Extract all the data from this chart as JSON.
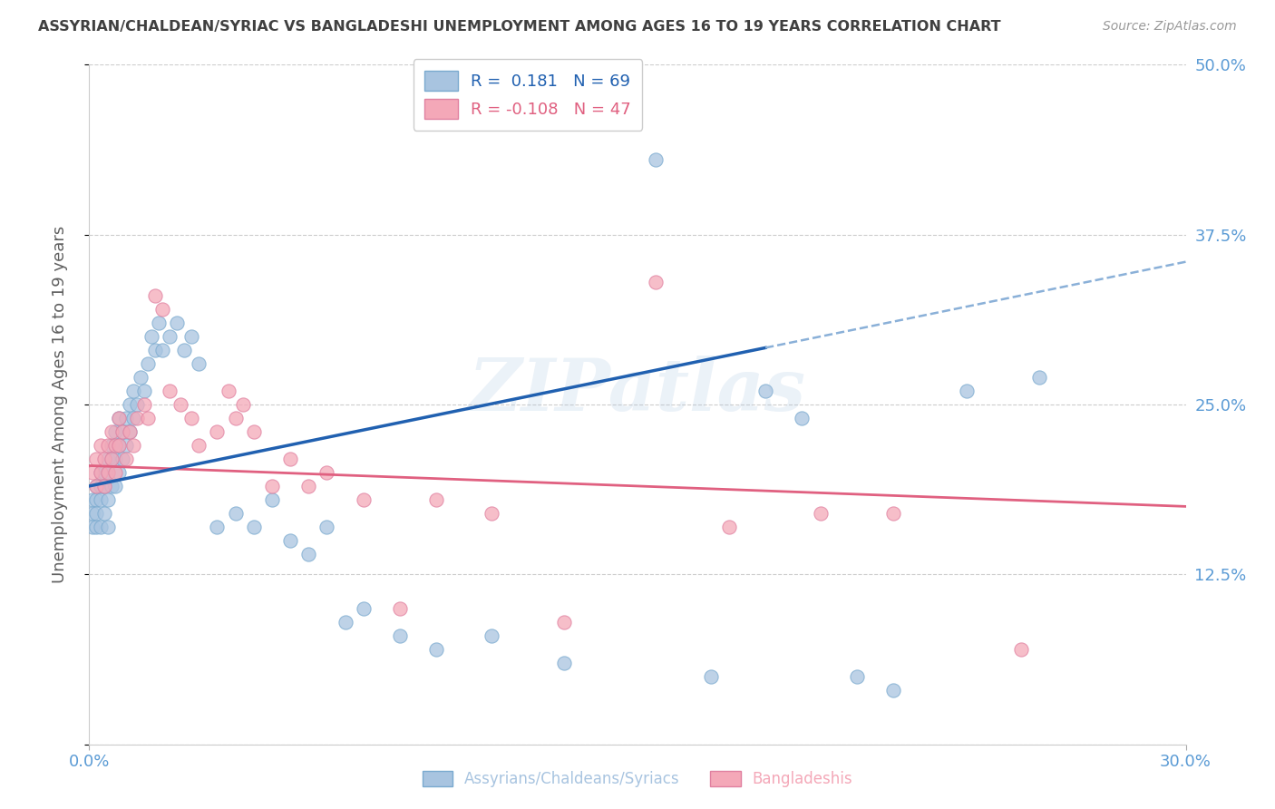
{
  "title": "ASSYRIAN/CHALDEAN/SYRIAC VS BANGLADESHI UNEMPLOYMENT AMONG AGES 16 TO 19 YEARS CORRELATION CHART",
  "source": "Source: ZipAtlas.com",
  "ylabel": "Unemployment Among Ages 16 to 19 years",
  "xlim": [
    0.0,
    0.3
  ],
  "ylim": [
    0.0,
    0.5
  ],
  "yticks": [
    0.0,
    0.125,
    0.25,
    0.375,
    0.5
  ],
  "ytick_labels": [
    "",
    "12.5%",
    "25.0%",
    "37.5%",
    "50.0%"
  ],
  "xticks": [
    0.0,
    0.3
  ],
  "xtick_labels": [
    "0.0%",
    "30.0%"
  ],
  "watermark": "ZIPatlas",
  "blue_color": "#a8c4e0",
  "blue_edge": "#7aaacf",
  "pink_color": "#f4a8b8",
  "pink_edge": "#e080a0",
  "trend_blue": "#2060b0",
  "trend_pink": "#e06080",
  "trend_dash": "#8ab0d8",
  "background_color": "#ffffff",
  "grid_color": "#cccccc",
  "tick_color": "#5b9bd5",
  "title_color": "#404040",
  "blue_intercept": 0.19,
  "blue_slope": 0.55,
  "pink_intercept": 0.205,
  "pink_slope": -0.1,
  "blue_x": [
    0.001,
    0.001,
    0.001,
    0.002,
    0.002,
    0.002,
    0.002,
    0.003,
    0.003,
    0.003,
    0.003,
    0.004,
    0.004,
    0.004,
    0.005,
    0.005,
    0.005,
    0.005,
    0.006,
    0.006,
    0.006,
    0.007,
    0.007,
    0.007,
    0.008,
    0.008,
    0.008,
    0.009,
    0.009,
    0.01,
    0.01,
    0.011,
    0.011,
    0.012,
    0.012,
    0.013,
    0.014,
    0.015,
    0.016,
    0.017,
    0.018,
    0.019,
    0.02,
    0.022,
    0.024,
    0.026,
    0.028,
    0.03,
    0.035,
    0.04,
    0.045,
    0.05,
    0.055,
    0.06,
    0.065,
    0.07,
    0.075,
    0.085,
    0.095,
    0.11,
    0.13,
    0.155,
    0.17,
    0.185,
    0.195,
    0.21,
    0.22,
    0.24,
    0.26
  ],
  "blue_y": [
    0.18,
    0.17,
    0.16,
    0.19,
    0.18,
    0.17,
    0.16,
    0.2,
    0.19,
    0.18,
    0.16,
    0.2,
    0.19,
    0.17,
    0.21,
    0.2,
    0.18,
    0.16,
    0.22,
    0.21,
    0.19,
    0.23,
    0.21,
    0.19,
    0.24,
    0.22,
    0.2,
    0.23,
    0.21,
    0.24,
    0.22,
    0.25,
    0.23,
    0.26,
    0.24,
    0.25,
    0.27,
    0.26,
    0.28,
    0.3,
    0.29,
    0.31,
    0.29,
    0.3,
    0.31,
    0.29,
    0.3,
    0.28,
    0.16,
    0.17,
    0.16,
    0.18,
    0.15,
    0.14,
    0.16,
    0.09,
    0.1,
    0.08,
    0.07,
    0.08,
    0.06,
    0.43,
    0.05,
    0.26,
    0.24,
    0.05,
    0.04,
    0.26,
    0.27
  ],
  "pink_x": [
    0.001,
    0.002,
    0.002,
    0.003,
    0.003,
    0.004,
    0.004,
    0.005,
    0.005,
    0.006,
    0.006,
    0.007,
    0.007,
    0.008,
    0.008,
    0.009,
    0.01,
    0.011,
    0.012,
    0.013,
    0.015,
    0.016,
    0.018,
    0.02,
    0.022,
    0.025,
    0.028,
    0.03,
    0.035,
    0.038,
    0.04,
    0.042,
    0.045,
    0.05,
    0.055,
    0.06,
    0.065,
    0.075,
    0.085,
    0.095,
    0.11,
    0.13,
    0.155,
    0.175,
    0.2,
    0.22,
    0.255
  ],
  "pink_y": [
    0.2,
    0.21,
    0.19,
    0.22,
    0.2,
    0.21,
    0.19,
    0.22,
    0.2,
    0.23,
    0.21,
    0.22,
    0.2,
    0.24,
    0.22,
    0.23,
    0.21,
    0.23,
    0.22,
    0.24,
    0.25,
    0.24,
    0.33,
    0.32,
    0.26,
    0.25,
    0.24,
    0.22,
    0.23,
    0.26,
    0.24,
    0.25,
    0.23,
    0.19,
    0.21,
    0.19,
    0.2,
    0.18,
    0.1,
    0.18,
    0.17,
    0.09,
    0.34,
    0.16,
    0.17,
    0.17,
    0.07
  ]
}
